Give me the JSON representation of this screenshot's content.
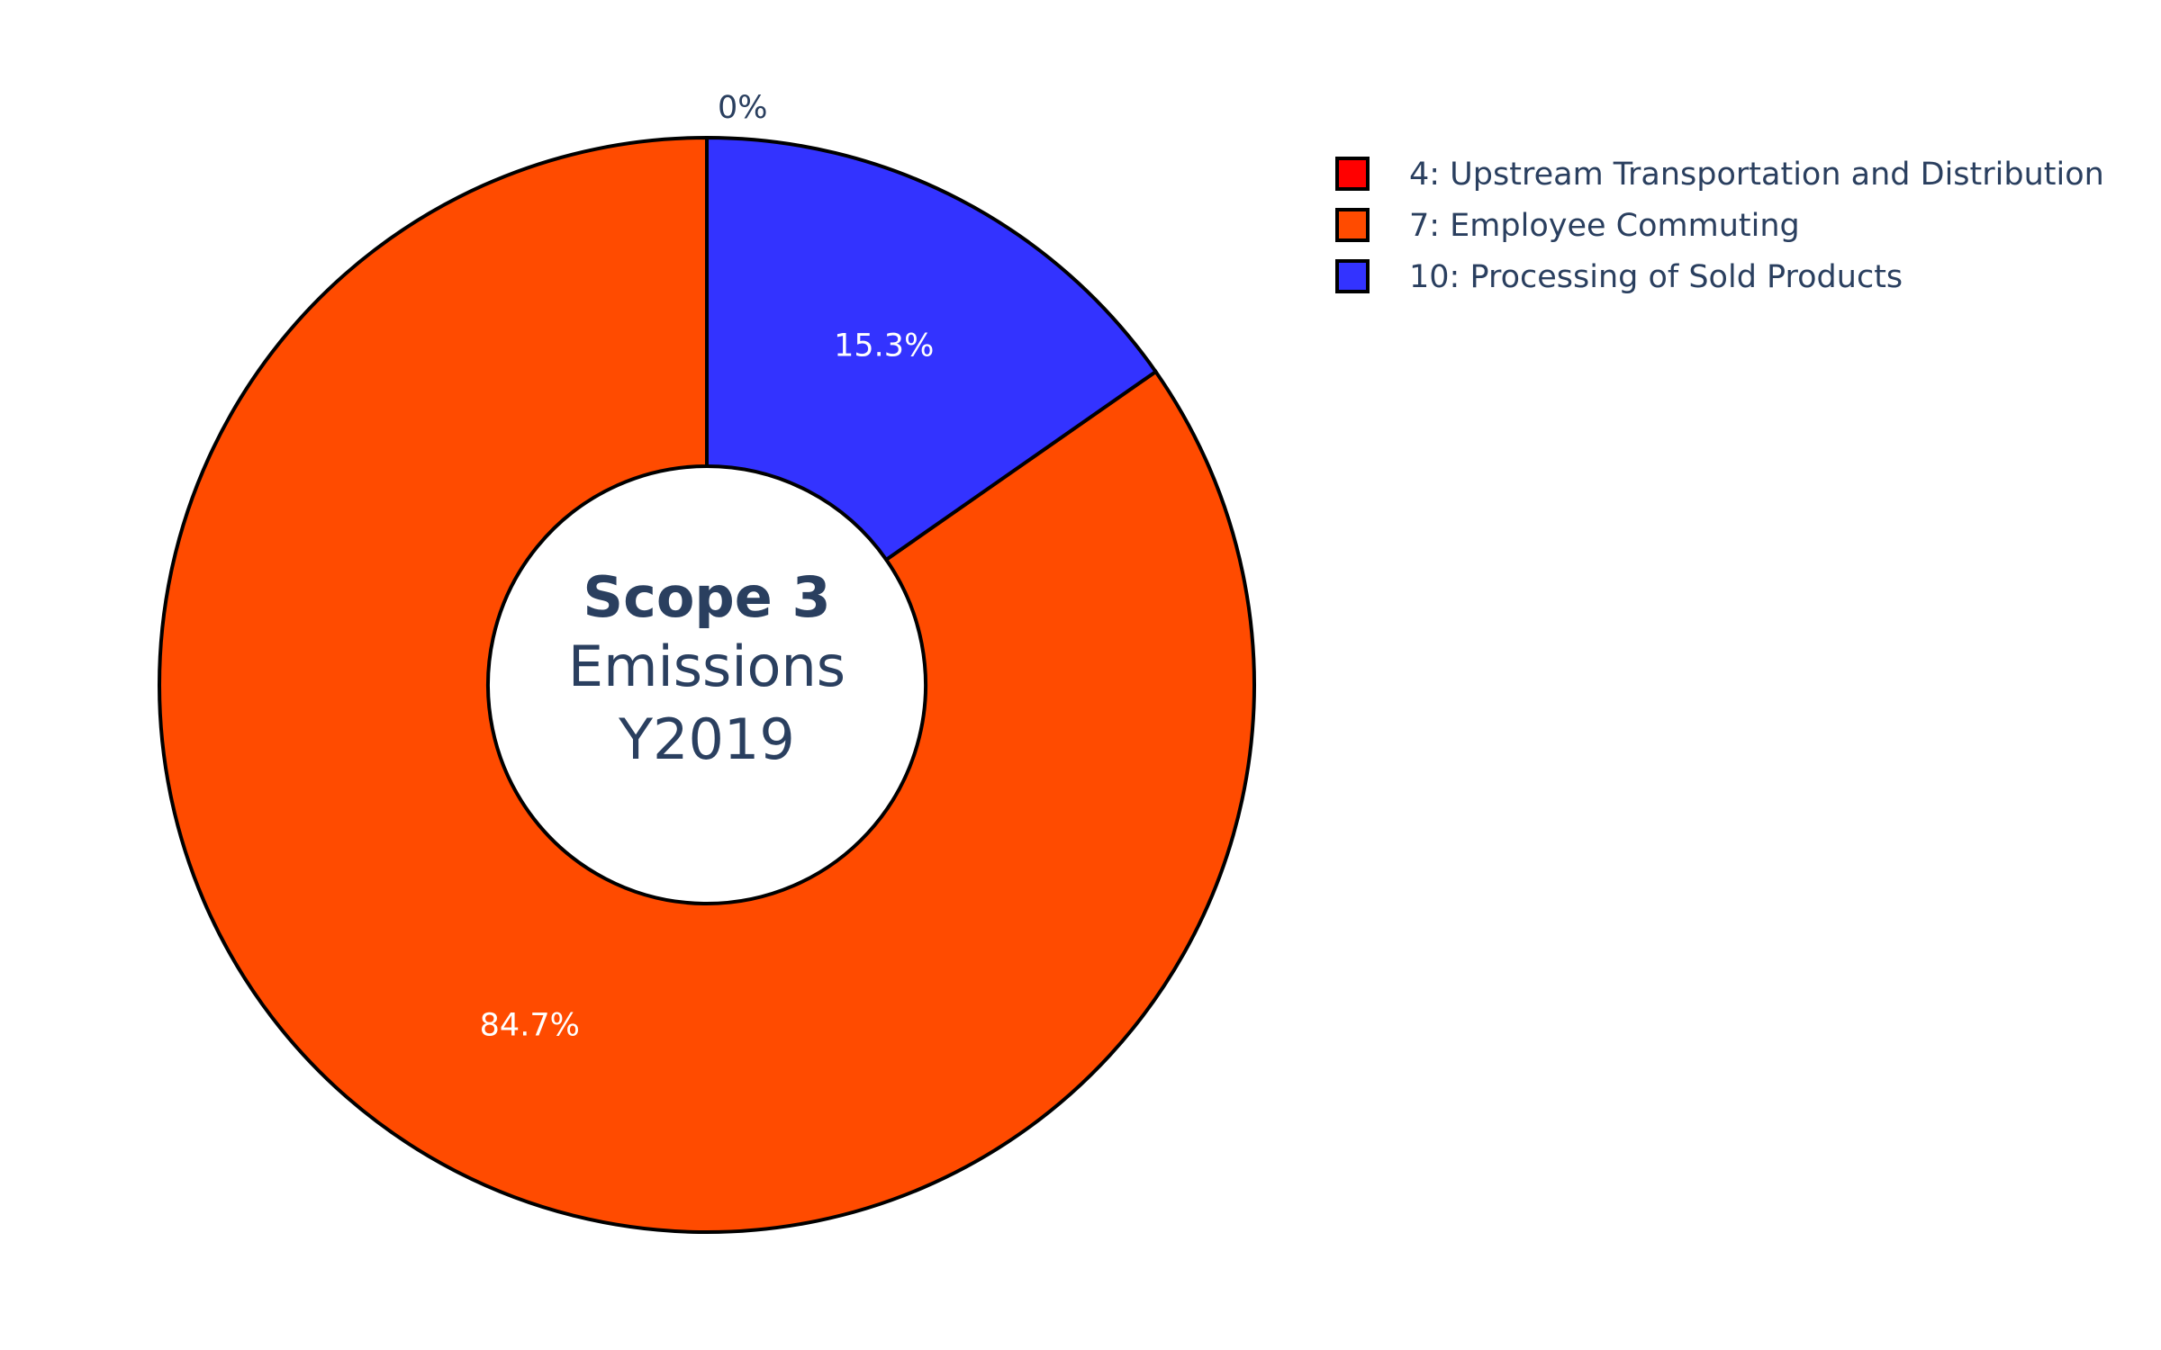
{
  "chart_data": {
    "type": "pie",
    "hole": true,
    "center_text": {
      "line1": "Scope 3",
      "line2": "Emissions",
      "line3": "Y2019"
    },
    "categories": [
      "4: Upstream Transportation and Distribution",
      "7: Employee Commuting",
      "10: Processing of Sold Products"
    ],
    "values": [
      0,
      84.7,
      15.3
    ],
    "labels": [
      "0%",
      "84.7%",
      "15.3%"
    ],
    "colors": [
      "#ff0000",
      "#ff4b00",
      "#3333ff"
    ],
    "legend_position": "top-right",
    "direction": "counterclockwise"
  }
}
